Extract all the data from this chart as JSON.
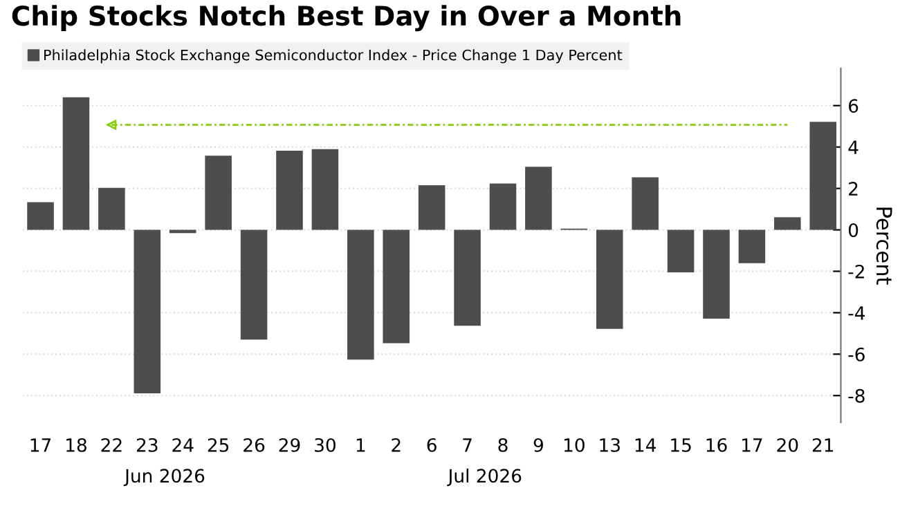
{
  "chart_data": {
    "type": "bar",
    "title": "Chip Stocks Notch Best Day in Over a Month",
    "categories": [
      "17",
      "18",
      "22",
      "23",
      "24",
      "25",
      "26",
      "29",
      "30",
      "1",
      "2",
      "6",
      "7",
      "8",
      "9",
      "10",
      "13",
      "14",
      "15",
      "16",
      "17",
      "20",
      "21"
    ],
    "series": [
      {
        "name": "Philadelphia Stock Exchange Semiconductor Index - Price Change 1 Day Percent",
        "color": "#4d4d4d",
        "values": [
          1.34,
          6.4,
          2.03,
          -7.89,
          -0.16,
          3.58,
          -5.3,
          3.82,
          3.9,
          -6.26,
          -5.47,
          2.15,
          -4.63,
          2.24,
          3.05,
          0.06,
          -4.78,
          2.54,
          -2.05,
          -4.29,
          -1.61,
          0.61,
          5.22
        ]
      }
    ],
    "ylabel": "Percent",
    "ylim": [
      -9.3,
      7.8
    ],
    "yticks": [
      -8,
      -6,
      -4,
      -2,
      0,
      2,
      4,
      6
    ],
    "grid": "y",
    "legend": "top left",
    "ref_lines": [
      {
        "axis": "y",
        "value": 5.07,
        "color": "#88cc11",
        "line_style": "dashed"
      }
    ],
    "annotations": [
      "Jun 2026",
      "Jul 2026"
    ]
  }
}
